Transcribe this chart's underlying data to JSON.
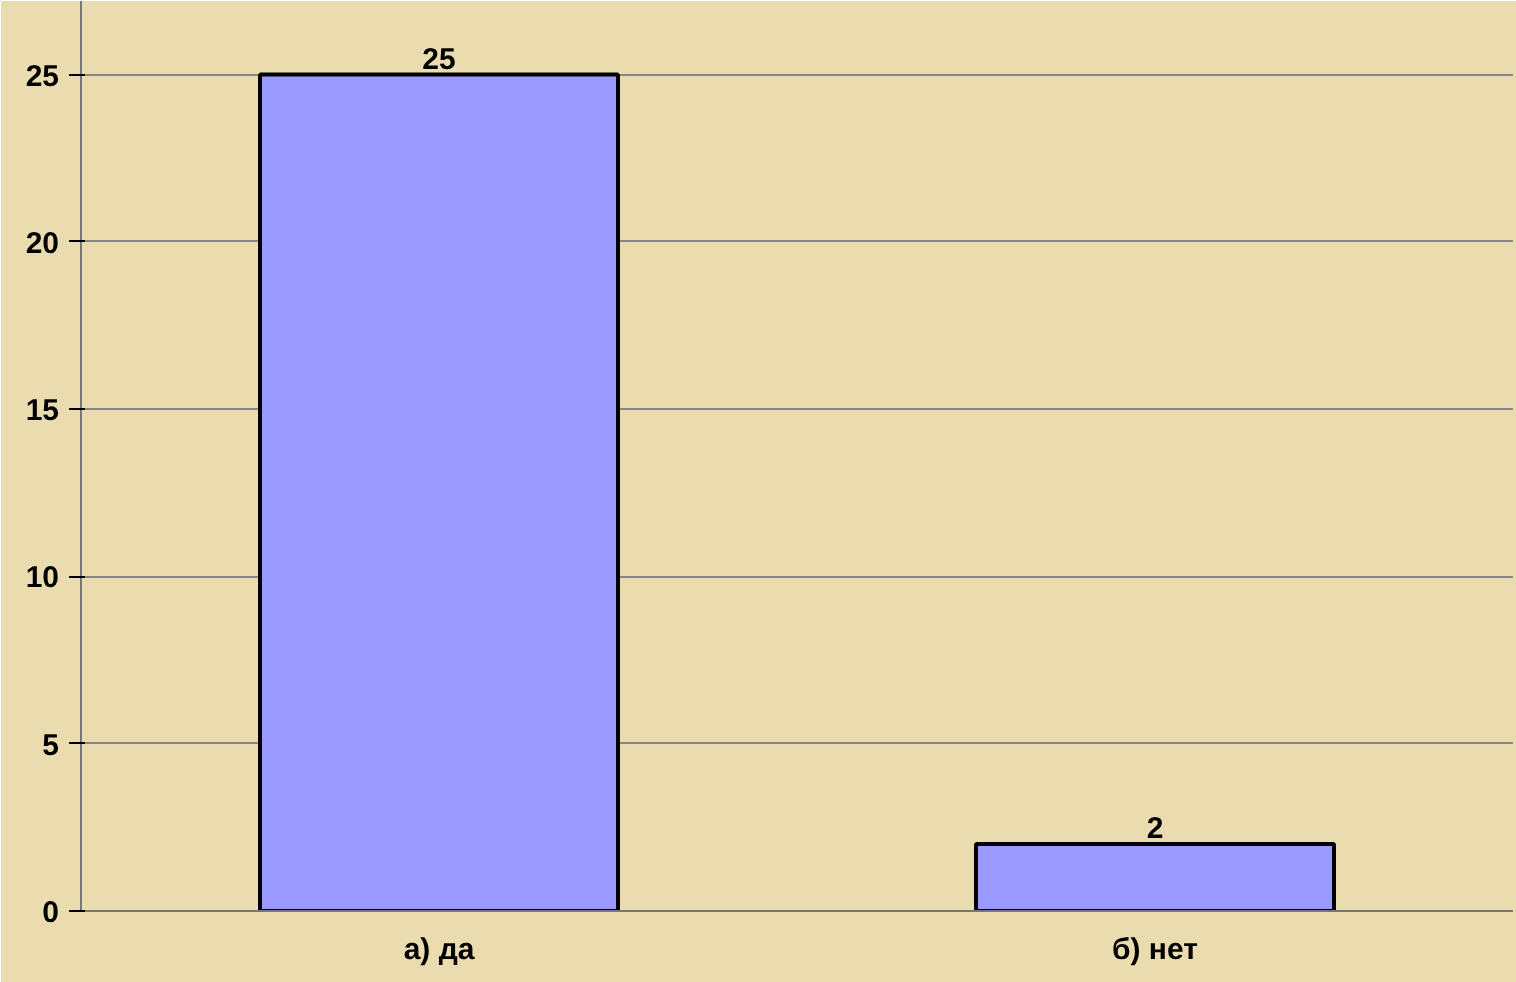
{
  "chart_data": {
    "type": "bar",
    "categories": [
      "а) да",
      "б) нет"
    ],
    "values": [
      25,
      2
    ],
    "color": "#9999ff",
    "ylim": [
      0,
      27.2
    ],
    "yticks": [
      0,
      5,
      10,
      15,
      20,
      25
    ],
    "grid": "y",
    "data_labels": true
  }
}
